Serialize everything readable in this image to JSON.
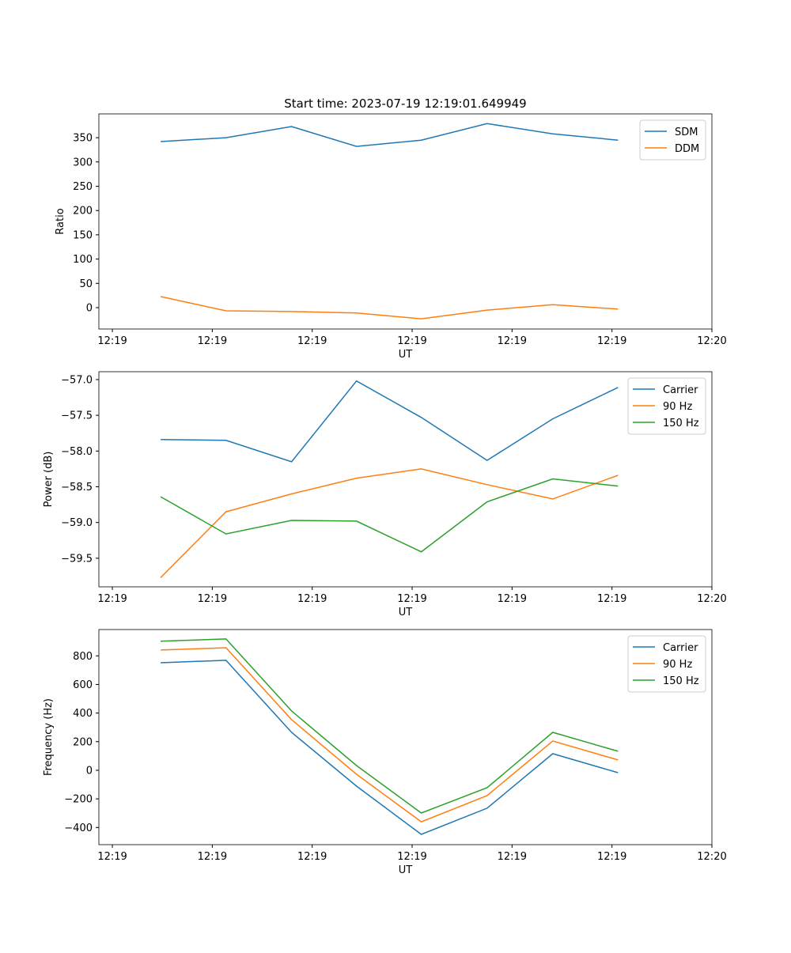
{
  "chart_data": [
    {
      "type": "line",
      "title": "Start time: 2023-07-19 12:19:01.649949",
      "xlabel": "UT",
      "ylabel": "Ratio",
      "x_units": "seconds after 12:19:00",
      "x": [
        4.83,
        11.37,
        17.93,
        24.43,
        30.92,
        37.5,
        44.07,
        50.6
      ],
      "xlim": [
        -1.35,
        60.0
      ],
      "xticks": [
        0,
        10,
        20,
        30,
        40,
        50,
        60
      ],
      "xtick_labels": [
        "12:19",
        "12:19",
        "12:19",
        "12:19",
        "12:19",
        "12:19",
        "12:20"
      ],
      "ylim": [
        -44,
        399
      ],
      "yticks": [
        0,
        50,
        100,
        150,
        200,
        250,
        300,
        350
      ],
      "ytick_labels": [
        "0",
        "50",
        "100",
        "150",
        "200",
        "250",
        "300",
        "350"
      ],
      "legend": "top-right",
      "grid": false,
      "series": [
        {
          "name": "SDM",
          "color": "#1f77b4",
          "values": [
            342,
            350,
            373,
            332,
            345,
            379,
            358,
            345
          ]
        },
        {
          "name": "DDM",
          "color": "#ff7f0e",
          "values": [
            22.8,
            -6.5,
            -8,
            -11,
            -23,
            -5,
            6,
            -3
          ]
        }
      ]
    },
    {
      "type": "line",
      "title": "",
      "xlabel": "UT",
      "ylabel": "Power (dB)",
      "x": [
        4.83,
        11.37,
        17.93,
        24.43,
        30.92,
        37.5,
        44.07,
        50.6
      ],
      "xlim": [
        -1.35,
        60.0
      ],
      "xticks": [
        0,
        10,
        20,
        30,
        40,
        50,
        60
      ],
      "xtick_labels": [
        "12:19",
        "12:19",
        "12:19",
        "12:19",
        "12:19",
        "12:19",
        "12:20"
      ],
      "ylim": [
        -59.9,
        -56.89
      ],
      "yticks": [
        -59.5,
        -59.0,
        -58.5,
        -58.0,
        -57.5,
        -57.0
      ],
      "ytick_labels": [
        "−59.5",
        "−59.0",
        "−58.5",
        "−58.0",
        "−57.5",
        "−57.0"
      ],
      "legend": "top-right",
      "grid": false,
      "series": [
        {
          "name": "Carrier",
          "color": "#1f77b4",
          "values": [
            -57.84,
            -57.85,
            -58.15,
            -57.02,
            -57.53,
            -58.13,
            -57.55,
            -57.11
          ]
        },
        {
          "name": "90 Hz",
          "color": "#ff7f0e",
          "values": [
            -59.77,
            -58.85,
            -58.6,
            -58.38,
            -58.25,
            -58.47,
            -58.67,
            -58.34
          ]
        },
        {
          "name": "150 Hz",
          "color": "#2ca02c",
          "values": [
            -58.64,
            -59.16,
            -58.97,
            -58.98,
            -59.41,
            -58.71,
            -58.39,
            -58.49
          ]
        }
      ]
    },
    {
      "type": "line",
      "title": "",
      "xlabel": "UT",
      "ylabel": "Frequency (Hz)",
      "x": [
        4.83,
        11.37,
        17.93,
        24.43,
        30.92,
        37.5,
        44.07,
        50.6
      ],
      "xlim": [
        -1.35,
        60.0
      ],
      "xticks": [
        0,
        10,
        20,
        30,
        40,
        50,
        60
      ],
      "xtick_labels": [
        "12:19",
        "12:19",
        "12:19",
        "12:19",
        "12:19",
        "12:19",
        "12:20"
      ],
      "ylim": [
        -520,
        984
      ],
      "yticks": [
        -400,
        -200,
        0,
        200,
        400,
        600,
        800
      ],
      "ytick_labels": [
        "−400",
        "−200",
        "0",
        "200",
        "400",
        "600",
        "800"
      ],
      "legend": "top-right",
      "grid": false,
      "series": [
        {
          "name": "Carrier",
          "color": "#1f77b4",
          "values": [
            752,
            769,
            265,
            -111,
            -448,
            -265,
            116,
            -17
          ]
        },
        {
          "name": "90 Hz",
          "color": "#ff7f0e",
          "values": [
            841,
            857,
            354,
            -28,
            -360,
            -177,
            205,
            72
          ]
        },
        {
          "name": "150 Hz",
          "color": "#2ca02c",
          "values": [
            902,
            918,
            415,
            33,
            -299,
            -122,
            265,
            133
          ]
        }
      ]
    }
  ]
}
